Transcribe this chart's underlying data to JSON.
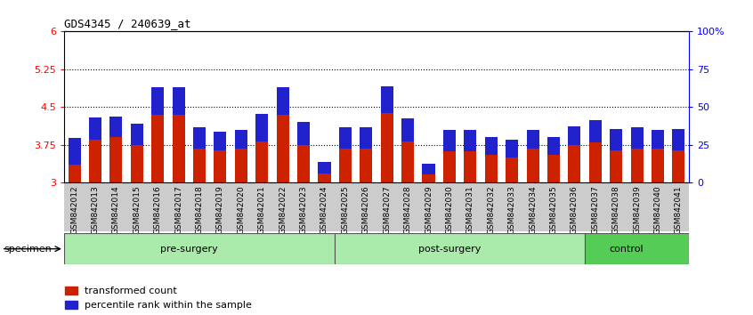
{
  "title": "GDS4345 / 240639_at",
  "samples": [
    "GSM842012",
    "GSM842013",
    "GSM842014",
    "GSM842015",
    "GSM842016",
    "GSM842017",
    "GSM842018",
    "GSM842019",
    "GSM842020",
    "GSM842021",
    "GSM842022",
    "GSM842023",
    "GSM842024",
    "GSM842025",
    "GSM842026",
    "GSM842027",
    "GSM842028",
    "GSM842029",
    "GSM842030",
    "GSM842031",
    "GSM842032",
    "GSM842033",
    "GSM842034",
    "GSM842035",
    "GSM842036",
    "GSM842037",
    "GSM842038",
    "GSM842039",
    "GSM842040",
    "GSM842041"
  ],
  "transformed_count": [
    3.35,
    3.85,
    3.9,
    3.75,
    4.35,
    4.35,
    3.68,
    3.65,
    3.68,
    3.82,
    4.35,
    3.75,
    3.18,
    3.68,
    3.68,
    4.38,
    3.82,
    3.17,
    3.63,
    3.63,
    3.55,
    3.5,
    3.68,
    3.55,
    3.75,
    3.8,
    3.65,
    3.68,
    3.68,
    3.65
  ],
  "percentile_rank_pct": [
    18,
    15,
    14,
    14,
    18,
    18,
    14,
    12,
    12,
    18,
    18,
    15,
    8,
    14,
    14,
    18,
    15,
    7,
    14,
    14,
    12,
    12,
    12,
    12,
    12,
    15,
    14,
    14,
    12,
    14
  ],
  "group_configs": [
    {
      "label": "pre-surgery",
      "start": 0,
      "end": 13,
      "color": "#aaeaaa"
    },
    {
      "label": "post-surgery",
      "start": 13,
      "end": 25,
      "color": "#aaeaaa"
    },
    {
      "label": "control",
      "start": 25,
      "end": 30,
      "color": "#55cc55"
    }
  ],
  "ylim_left": [
    3.0,
    6.0
  ],
  "ylim_right": [
    0,
    100
  ],
  "yticks_left": [
    3.0,
    3.75,
    4.5,
    5.25,
    6.0
  ],
  "ytick_labels_left": [
    "3",
    "3.75",
    "4.5",
    "5.25",
    "6"
  ],
  "yticks_right": [
    0,
    25,
    50,
    75,
    100
  ],
  "ytick_labels_right": [
    "0",
    "25",
    "50",
    "75",
    "100%"
  ],
  "hlines": [
    3.75,
    4.5,
    5.25
  ],
  "bar_color_red": "#CC2200",
  "bar_color_blue": "#2222CC",
  "bar_width": 0.6,
  "legend_labels": [
    "transformed count",
    "percentile rank within the sample"
  ],
  "legend_colors": [
    "#CC2200",
    "#2222CC"
  ],
  "xtick_area_color": "#cccccc",
  "bg_color": "#ffffff"
}
